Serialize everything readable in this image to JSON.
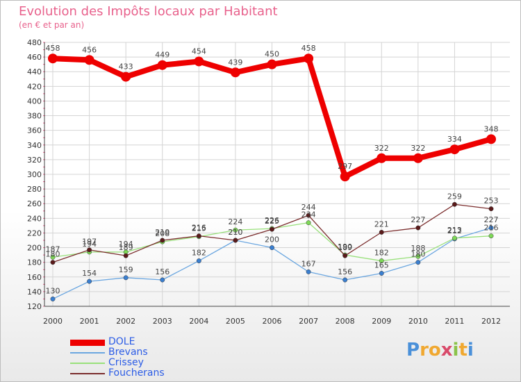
{
  "title": "Evolution des Impôts locaux par Habitant",
  "subtitle": "(en € et par an)",
  "brand": [
    "P",
    "r",
    "o",
    "x",
    "i",
    "t",
    "i"
  ],
  "brand_colors": [
    "#4a90d9",
    "#f0a830",
    "#f0a830",
    "#d94a6a",
    "#8bc34a",
    "#f0a830",
    "#4a90d9"
  ],
  "chart_data": {
    "type": "line",
    "title": "Evolution des Impôts locaux par Habitant",
    "subtitle": "(en € et par an)",
    "categories": [
      "2000",
      "2001",
      "2002",
      "2003",
      "2004",
      "2005",
      "2006",
      "2007",
      "2008",
      "2009",
      "2010",
      "2011",
      "2012"
    ],
    "ylim": [
      120,
      480
    ],
    "yticks": [
      120,
      140,
      160,
      180,
      200,
      220,
      240,
      260,
      280,
      300,
      320,
      340,
      360,
      380,
      400,
      420,
      440,
      460,
      480
    ],
    "grid": true,
    "legend_position": "bottom-left",
    "series": [
      {
        "name": "DOLE",
        "color": "#ee0000",
        "values": [
          458,
          456,
          433,
          449,
          454,
          439,
          450,
          458,
          297,
          322,
          322,
          334,
          348
        ],
        "labels": [
          "458",
          "456",
          "433",
          "449",
          "454",
          "439",
          "450",
          "458",
          "297",
          "322",
          "322",
          "334",
          "348"
        ]
      },
      {
        "name": "Brevans",
        "color": "#6aa6e0",
        "marker": "#3a7fd0",
        "values": [
          130,
          154,
          159,
          156,
          182,
          210,
          200,
          167,
          156,
          165,
          180,
          212,
          227
        ],
        "labels": [
          "130",
          "154",
          "159",
          "156",
          "182",
          "210",
          "200",
          "167",
          "156",
          "165",
          "180",
          "212",
          "227"
        ]
      },
      {
        "name": "Crissey",
        "color": "#98e07a",
        "marker": "#7ed957",
        "values": [
          187,
          194,
          194,
          208,
          215,
          224,
          226,
          234,
          190,
          182,
          188,
          213,
          216
        ],
        "labels": [
          "187",
          "194",
          "194",
          "208",
          "215",
          "224",
          "226",
          "234",
          "190",
          "182",
          "188",
          "213",
          "216"
        ]
      },
      {
        "name": "Foucherans",
        "color": "#7a2c2c",
        "marker": "#5a1a1a",
        "values": [
          180,
          197,
          189,
          210,
          216,
          210,
          225,
          244,
          189,
          221,
          227,
          259,
          253
        ],
        "labels": [
          "180",
          "197",
          "189",
          "210",
          "216",
          "210",
          "225",
          "244",
          "189",
          "221",
          "227",
          "259",
          "253"
        ]
      }
    ]
  }
}
